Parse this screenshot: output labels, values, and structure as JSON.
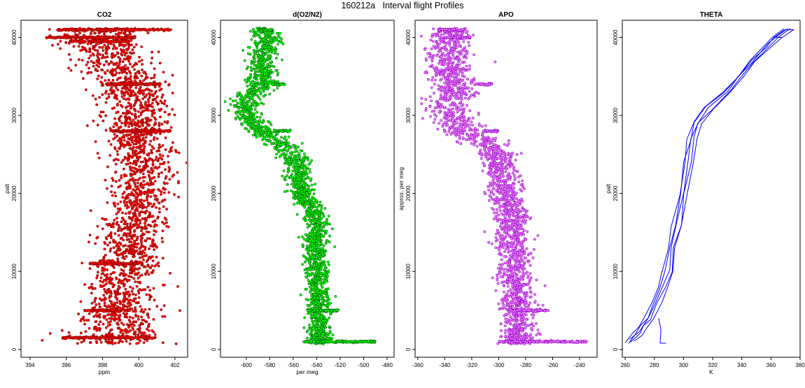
{
  "figure": {
    "title": "160212a   Interval flight Profiles"
  },
  "chart_data": [
    {
      "type": "scatter",
      "title": "CO2",
      "xlabel": "ppm",
      "ylabel": "palt",
      "xlim": [
        393.5,
        402.7
      ],
      "ylim": [
        -1000,
        42200
      ],
      "xticks": [
        394,
        396,
        398,
        400,
        402
      ],
      "yticks": [
        0,
        10000,
        20000,
        30000,
        40000
      ],
      "grid": false,
      "marker": "open-circle",
      "colors": {
        "fill": "#ff0000",
        "edge": "#8b0000"
      },
      "series": [
        {
          "profile": [
            [
              1000,
              398.8,
              1.2
            ],
            [
              2500,
              398.9,
              1.1
            ],
            [
              5000,
              398.9,
              1.1
            ],
            [
              8000,
              399.0,
              1.0
            ],
            [
              10000,
              399.1,
              1.0
            ],
            [
              12000,
              399.3,
              0.9
            ],
            [
              15000,
              399.5,
              0.9
            ],
            [
              18000,
              399.8,
              0.8
            ],
            [
              20000,
              400.2,
              0.8
            ],
            [
              23000,
              400.2,
              0.8
            ],
            [
              26000,
              400.0,
              0.8
            ],
            [
              28000,
              399.9,
              0.8
            ],
            [
              30000,
              400.0,
              0.9
            ],
            [
              32000,
              399.8,
              0.9
            ],
            [
              34000,
              399.5,
              1.0
            ],
            [
              36000,
              398.8,
              1.0
            ],
            [
              38000,
              398.2,
              1.0
            ],
            [
              40000,
              397.9,
              1.2
            ],
            [
              41000,
              398.0,
              1.4
            ]
          ],
          "horizontal_bands": [
            [
              41000,
              395.5,
              401.8
            ],
            [
              40000,
              394.9,
              399.8
            ],
            [
              39500,
              396.2,
              399.5
            ],
            [
              34000,
              398.2,
              401.2
            ],
            [
              28000,
              398.5,
              401.8
            ],
            [
              11000,
              397.3,
              400.0
            ],
            [
              5000,
              397.0,
              399.5
            ],
            [
              1500,
              395.8,
              400.9
            ]
          ]
        }
      ]
    },
    {
      "type": "scatter",
      "title": "d(O2/N2)",
      "xlabel": "per meg",
      "ylabel": "",
      "xlim": [
        -622,
        -474
      ],
      "ylim": [
        -1000,
        42200
      ],
      "xticks": [
        -600,
        -580,
        -560,
        -540,
        -520,
        -500,
        -480
      ],
      "yticks": [
        0,
        10000,
        20000,
        30000,
        40000
      ],
      "grid": false,
      "marker": "open-circle",
      "colors": {
        "fill": "#00ff00",
        "edge": "#006400"
      },
      "series": [
        {
          "profile": [
            [
              1000,
              -538,
              5
            ],
            [
              3000,
              -538,
              5
            ],
            [
              5000,
              -538,
              5
            ],
            [
              8000,
              -538,
              5
            ],
            [
              10000,
              -540,
              5
            ],
            [
              12000,
              -540,
              5
            ],
            [
              14000,
              -542,
              5
            ],
            [
              16000,
              -540,
              5
            ],
            [
              18000,
              -545,
              5
            ],
            [
              20000,
              -553,
              5
            ],
            [
              22000,
              -555,
              5
            ],
            [
              24000,
              -558,
              6
            ],
            [
              26000,
              -566,
              6
            ],
            [
              27000,
              -576,
              6
            ],
            [
              28000,
              -588,
              6
            ],
            [
              29000,
              -595,
              6
            ],
            [
              30000,
              -600,
              6
            ],
            [
              31000,
              -602,
              6
            ],
            [
              32000,
              -600,
              6
            ],
            [
              33000,
              -592,
              6
            ],
            [
              34000,
              -588,
              6
            ],
            [
              35000,
              -586,
              6
            ],
            [
              36000,
              -586,
              6
            ],
            [
              38000,
              -586,
              6
            ],
            [
              40000,
              -582,
              6
            ],
            [
              41000,
              -585,
              5
            ]
          ],
          "horizontal_bands": [
            [
              41000,
              -590,
              -577
            ],
            [
              34000,
              -578,
              -567
            ],
            [
              28000,
              -576,
              -562
            ],
            [
              5000,
              -548,
              -521
            ],
            [
              1000,
              -550,
              -490
            ]
          ]
        }
      ]
    },
    {
      "type": "scatter",
      "title": "APO",
      "xlabel": "",
      "ylabel": "approx. per meg",
      "xlim": [
        -362,
        -227
      ],
      "ylim": [
        -1000,
        42200
      ],
      "xticks": [
        -360,
        -340,
        -320,
        -300,
        -280,
        -260,
        -240
      ],
      "yticks": [
        0,
        10000,
        20000,
        30000,
        40000
      ],
      "grid": false,
      "marker": "open-circle",
      "colors": {
        "fill": "#ee82ee",
        "edge": "#9400d3"
      },
      "series": [
        {
          "profile": [
            [
              1000,
              -287,
              6
            ],
            [
              3000,
              -287,
              6
            ],
            [
              5000,
              -287,
              6
            ],
            [
              8000,
              -287,
              6
            ],
            [
              10000,
              -288,
              6
            ],
            [
              12000,
              -288,
              6
            ],
            [
              14000,
              -290,
              6
            ],
            [
              16000,
              -290,
              6
            ],
            [
              18000,
              -292,
              6
            ],
            [
              20000,
              -296,
              6
            ],
            [
              22000,
              -298,
              6
            ],
            [
              24000,
              -300,
              7
            ],
            [
              26000,
              -305,
              7
            ],
            [
              27000,
              -315,
              7
            ],
            [
              28000,
              -325,
              8
            ],
            [
              29000,
              -330,
              8
            ],
            [
              30000,
              -335,
              8
            ],
            [
              31000,
              -338,
              8
            ],
            [
              32000,
              -336,
              8
            ],
            [
              33000,
              -333,
              8
            ],
            [
              34000,
              -333,
              8
            ],
            [
              36000,
              -336,
              8
            ],
            [
              38000,
              -338,
              8
            ],
            [
              40000,
              -336,
              8
            ],
            [
              41000,
              -336,
              6
            ]
          ],
          "horizontal_bands": [
            [
              41000,
              -345,
              -325
            ],
            [
              40000,
              -340,
              -320
            ],
            [
              34000,
              -318,
              -305
            ],
            [
              28000,
              -312,
              -300
            ],
            [
              5000,
              -292,
              -263
            ],
            [
              1000,
              -300,
              -235
            ]
          ]
        }
      ]
    },
    {
      "type": "line",
      "title": "THETA",
      "xlabel": "K",
      "ylabel": "palt",
      "xlim": [
        258,
        380
      ],
      "ylim": [
        -1000,
        42200
      ],
      "xticks": [
        260,
        280,
        300,
        320,
        340,
        360,
        380
      ],
      "yticks": [
        0,
        10000,
        20000,
        30000,
        40000
      ],
      "grid": false,
      "colors": {
        "line": "#0000ff"
      },
      "series": [
        {
          "profile": [
            [
              1000,
              263
            ],
            [
              2000,
              268
            ],
            [
              3000,
              272
            ],
            [
              4000,
              276
            ],
            [
              6000,
              281
            ],
            [
              8000,
              285
            ],
            [
              10000,
              289
            ],
            [
              13000,
              292
            ],
            [
              16000,
              296
            ],
            [
              20000,
              300
            ],
            [
              24000,
              303
            ],
            [
              27000,
              306
            ],
            [
              29000,
              309
            ],
            [
              31000,
              318
            ],
            [
              33000,
              330
            ],
            [
              35000,
              339
            ],
            [
              37000,
              348
            ],
            [
              39000,
              358
            ],
            [
              40000,
              364
            ],
            [
              41000,
              372
            ]
          ]
        }
      ]
    }
  ]
}
